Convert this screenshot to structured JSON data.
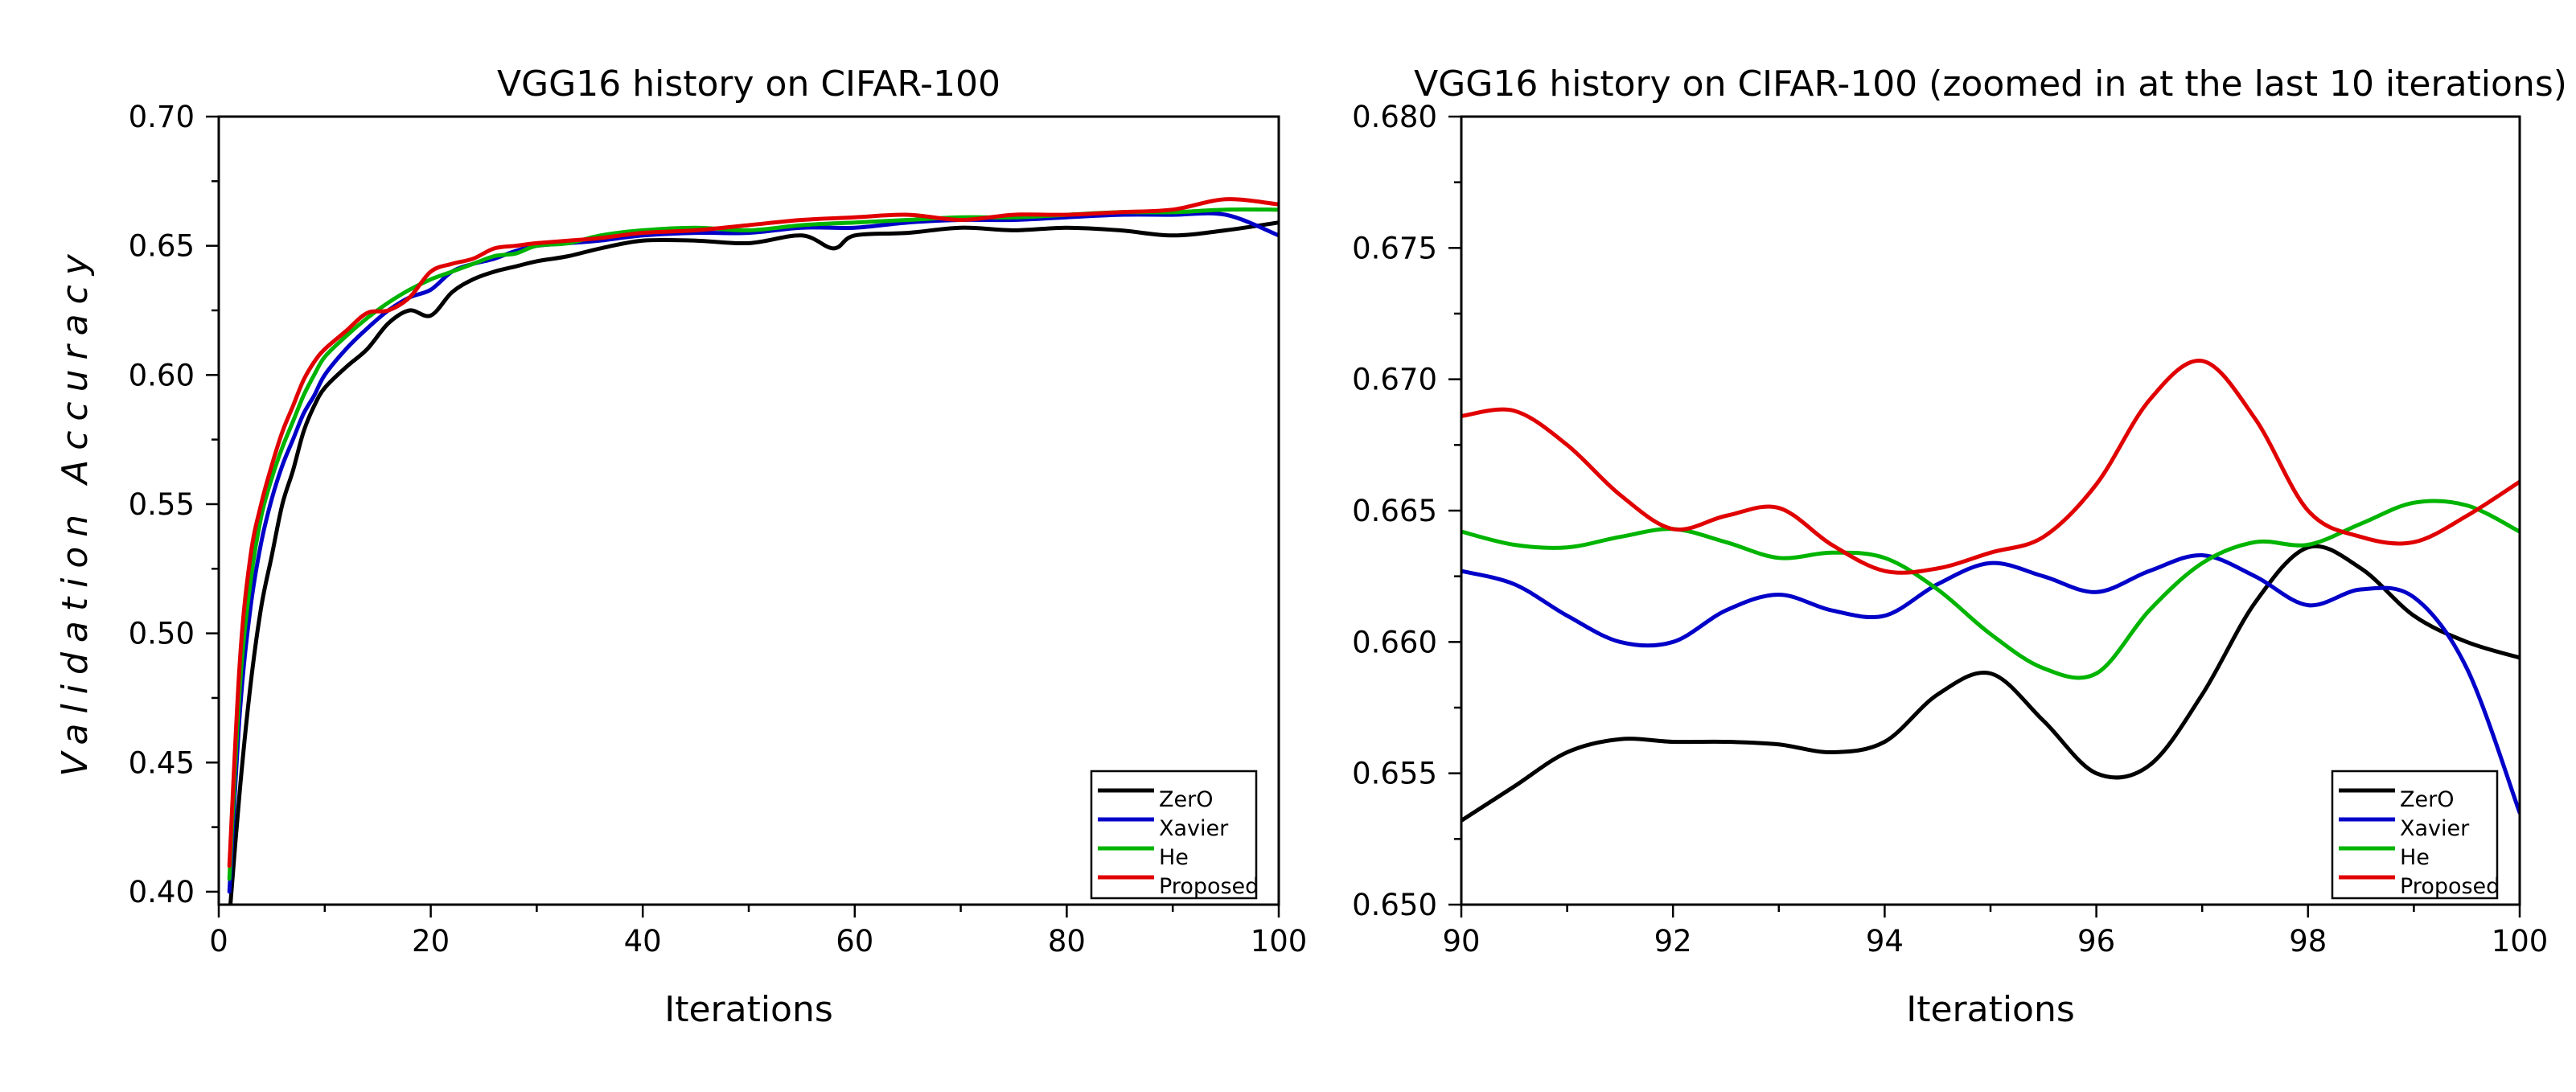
{
  "chart_data": [
    {
      "type": "line",
      "title": "VGG16 history on CIFAR-100",
      "xlabel": "Iterations",
      "ylabel": "Validation Accuracy",
      "xlim": [
        0,
        100
      ],
      "ylim": [
        0.395,
        0.7
      ],
      "xticks": [
        0,
        20,
        40,
        60,
        80,
        100
      ],
      "xtick_labels": [
        "0",
        "20",
        "40",
        "60",
        "80",
        "100"
      ],
      "yticks": [
        0.4,
        0.45,
        0.5,
        0.55,
        0.6,
        0.65,
        0.7
      ],
      "ytick_labels": [
        "0.40",
        "0.45",
        "0.50",
        "0.55",
        "0.60",
        "0.65",
        "0.70"
      ],
      "legend_position": "bottom-right",
      "series": [
        {
          "name": "ZerO",
          "color": "#000000",
          "x": [
            1,
            2,
            3,
            4,
            5,
            6,
            7,
            8,
            9,
            10,
            12,
            14,
            16,
            18,
            20,
            22,
            24,
            26,
            28,
            30,
            33,
            36,
            40,
            45,
            50,
            55,
            58,
            60,
            65,
            70,
            75,
            80,
            85,
            90,
            95,
            100
          ],
          "y": [
            0.39,
            0.44,
            0.48,
            0.51,
            0.53,
            0.55,
            0.563,
            0.578,
            0.588,
            0.595,
            0.603,
            0.61,
            0.62,
            0.625,
            0.623,
            0.632,
            0.637,
            0.64,
            0.642,
            0.644,
            0.646,
            0.649,
            0.652,
            0.652,
            0.651,
            0.654,
            0.649,
            0.654,
            0.655,
            0.657,
            0.656,
            0.657,
            0.656,
            0.654,
            0.656,
            0.659
          ]
        },
        {
          "name": "Xavier",
          "color": "#0000c8",
          "x": [
            1,
            2,
            3,
            4,
            5,
            6,
            7,
            8,
            9,
            10,
            12,
            14,
            16,
            18,
            20,
            22,
            24,
            26,
            28,
            30,
            33,
            36,
            40,
            45,
            50,
            55,
            60,
            65,
            70,
            75,
            80,
            85,
            90,
            95,
            100
          ],
          "y": [
            0.4,
            0.47,
            0.51,
            0.535,
            0.552,
            0.565,
            0.575,
            0.585,
            0.592,
            0.6,
            0.61,
            0.618,
            0.625,
            0.63,
            0.633,
            0.64,
            0.643,
            0.645,
            0.648,
            0.65,
            0.651,
            0.652,
            0.654,
            0.655,
            0.655,
            0.657,
            0.657,
            0.659,
            0.66,
            0.66,
            0.661,
            0.662,
            0.662,
            0.662,
            0.654
          ]
        },
        {
          "name": "He",
          "color": "#00b400",
          "x": [
            1,
            2,
            3,
            4,
            5,
            6,
            7,
            8,
            9,
            10,
            12,
            14,
            16,
            18,
            20,
            22,
            24,
            26,
            28,
            30,
            33,
            36,
            40,
            45,
            50,
            55,
            60,
            65,
            70,
            75,
            80,
            85,
            90,
            95,
            100
          ],
          "y": [
            0.405,
            0.48,
            0.52,
            0.545,
            0.56,
            0.572,
            0.582,
            0.592,
            0.6,
            0.607,
            0.615,
            0.622,
            0.628,
            0.633,
            0.637,
            0.64,
            0.643,
            0.646,
            0.647,
            0.65,
            0.651,
            0.654,
            0.656,
            0.657,
            0.656,
            0.658,
            0.659,
            0.66,
            0.661,
            0.661,
            0.662,
            0.663,
            0.663,
            0.664,
            0.664
          ]
        },
        {
          "name": "Proposed",
          "color": "#e00000",
          "x": [
            1,
            2,
            3,
            4,
            5,
            6,
            7,
            8,
            9,
            10,
            12,
            14,
            16,
            18,
            20,
            22,
            24,
            26,
            28,
            30,
            33,
            36,
            40,
            45,
            50,
            55,
            60,
            65,
            70,
            75,
            80,
            85,
            90,
            95,
            100
          ],
          "y": [
            0.41,
            0.49,
            0.53,
            0.55,
            0.565,
            0.578,
            0.588,
            0.598,
            0.605,
            0.61,
            0.617,
            0.624,
            0.625,
            0.63,
            0.64,
            0.643,
            0.645,
            0.649,
            0.65,
            0.651,
            0.652,
            0.653,
            0.655,
            0.656,
            0.658,
            0.66,
            0.661,
            0.662,
            0.66,
            0.662,
            0.662,
            0.663,
            0.664,
            0.668,
            0.666
          ]
        }
      ]
    },
    {
      "type": "line",
      "title": "VGG16 history on CIFAR-100 (zoomed in at the last 10 iterations)",
      "xlabel": "Iterations",
      "ylabel": "",
      "xlim": [
        90,
        100
      ],
      "ylim": [
        0.65,
        0.68
      ],
      "xticks": [
        90,
        92,
        94,
        96,
        98,
        100
      ],
      "xtick_labels": [
        "90",
        "92",
        "94",
        "96",
        "98",
        "100"
      ],
      "yticks": [
        0.65,
        0.655,
        0.66,
        0.665,
        0.67,
        0.675,
        0.68
      ],
      "ytick_labels": [
        "0.650",
        "0.655",
        "0.660",
        "0.665",
        "0.670",
        "0.675",
        "0.680"
      ],
      "legend_position": "bottom-right",
      "series": [
        {
          "name": "ZerO",
          "color": "#000000",
          "x": [
            90,
            90.5,
            91,
            91.5,
            92,
            92.5,
            93,
            93.5,
            94,
            94.5,
            95,
            95.5,
            96,
            96.5,
            97,
            97.5,
            98,
            98.5,
            99,
            99.5,
            100
          ],
          "y": [
            0.6532,
            0.6545,
            0.6558,
            0.6563,
            0.6562,
            0.6562,
            0.6561,
            0.6558,
            0.6562,
            0.658,
            0.6588,
            0.657,
            0.655,
            0.6553,
            0.658,
            0.6615,
            0.6636,
            0.6628,
            0.661,
            0.66,
            0.6594
          ]
        },
        {
          "name": "Xavier",
          "color": "#0000c8",
          "x": [
            90,
            90.5,
            91,
            91.5,
            92,
            92.5,
            93,
            93.5,
            94,
            94.5,
            95,
            95.5,
            96,
            96.5,
            97,
            97.5,
            98,
            98.5,
            99,
            99.5,
            100
          ],
          "y": [
            0.6627,
            0.6622,
            0.661,
            0.66,
            0.66,
            0.6612,
            0.6618,
            0.6612,
            0.661,
            0.6622,
            0.663,
            0.6625,
            0.6619,
            0.6627,
            0.6633,
            0.6625,
            0.6614,
            0.662,
            0.6617,
            0.659,
            0.6535
          ]
        },
        {
          "name": "He",
          "color": "#00b400",
          "x": [
            90,
            90.5,
            91,
            91.5,
            92,
            92.5,
            93,
            93.5,
            94,
            94.5,
            95,
            95.5,
            96,
            96.5,
            97,
            97.5,
            98,
            98.5,
            99,
            99.5,
            100
          ],
          "y": [
            0.6642,
            0.6637,
            0.6636,
            0.664,
            0.6643,
            0.6638,
            0.6632,
            0.6634,
            0.6632,
            0.662,
            0.6603,
            0.659,
            0.6588,
            0.6612,
            0.663,
            0.6638,
            0.6637,
            0.6645,
            0.6653,
            0.6652,
            0.6642
          ]
        },
        {
          "name": "Proposed",
          "color": "#e00000",
          "x": [
            90,
            90.5,
            91,
            91.5,
            92,
            92.5,
            93,
            93.5,
            94,
            94.5,
            95,
            95.5,
            96,
            96.5,
            97,
            97.5,
            98,
            98.5,
            99,
            99.5,
            100
          ],
          "y": [
            0.6686,
            0.6688,
            0.6675,
            0.6656,
            0.6643,
            0.6648,
            0.6651,
            0.6637,
            0.6627,
            0.6628,
            0.6634,
            0.664,
            0.666,
            0.6692,
            0.6707,
            0.6685,
            0.665,
            0.664,
            0.6638,
            0.6648,
            0.6661
          ]
        }
      ]
    }
  ],
  "legend_labels": [
    "ZerO",
    "Xavier",
    "He",
    "Proposed"
  ]
}
